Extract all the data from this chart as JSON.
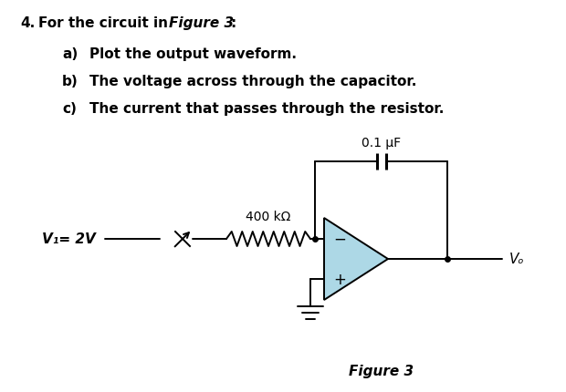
{
  "title_num": "4.",
  "title_text": "For the circuit in ",
  "title_italic": "Figure 3",
  "title_colon": ":",
  "items": [
    {
      "label": "a)",
      "text": "  Plot the output waveform."
    },
    {
      "label": "b)",
      "text": "  The voltage across through the capacitor."
    },
    {
      "label": "c)",
      "text": "  The current that passes through the resistor."
    }
  ],
  "figure_label": "Figure 3",
  "cap_label": "0.1 μF",
  "res_label": "400 kΩ",
  "v1_label": "V₁= 2V",
  "vo_label": "Vₒ",
  "bg_color": "#ffffff",
  "opamp_fill": "#add8e6",
  "line_color": "#000000",
  "text_color": "#000000"
}
